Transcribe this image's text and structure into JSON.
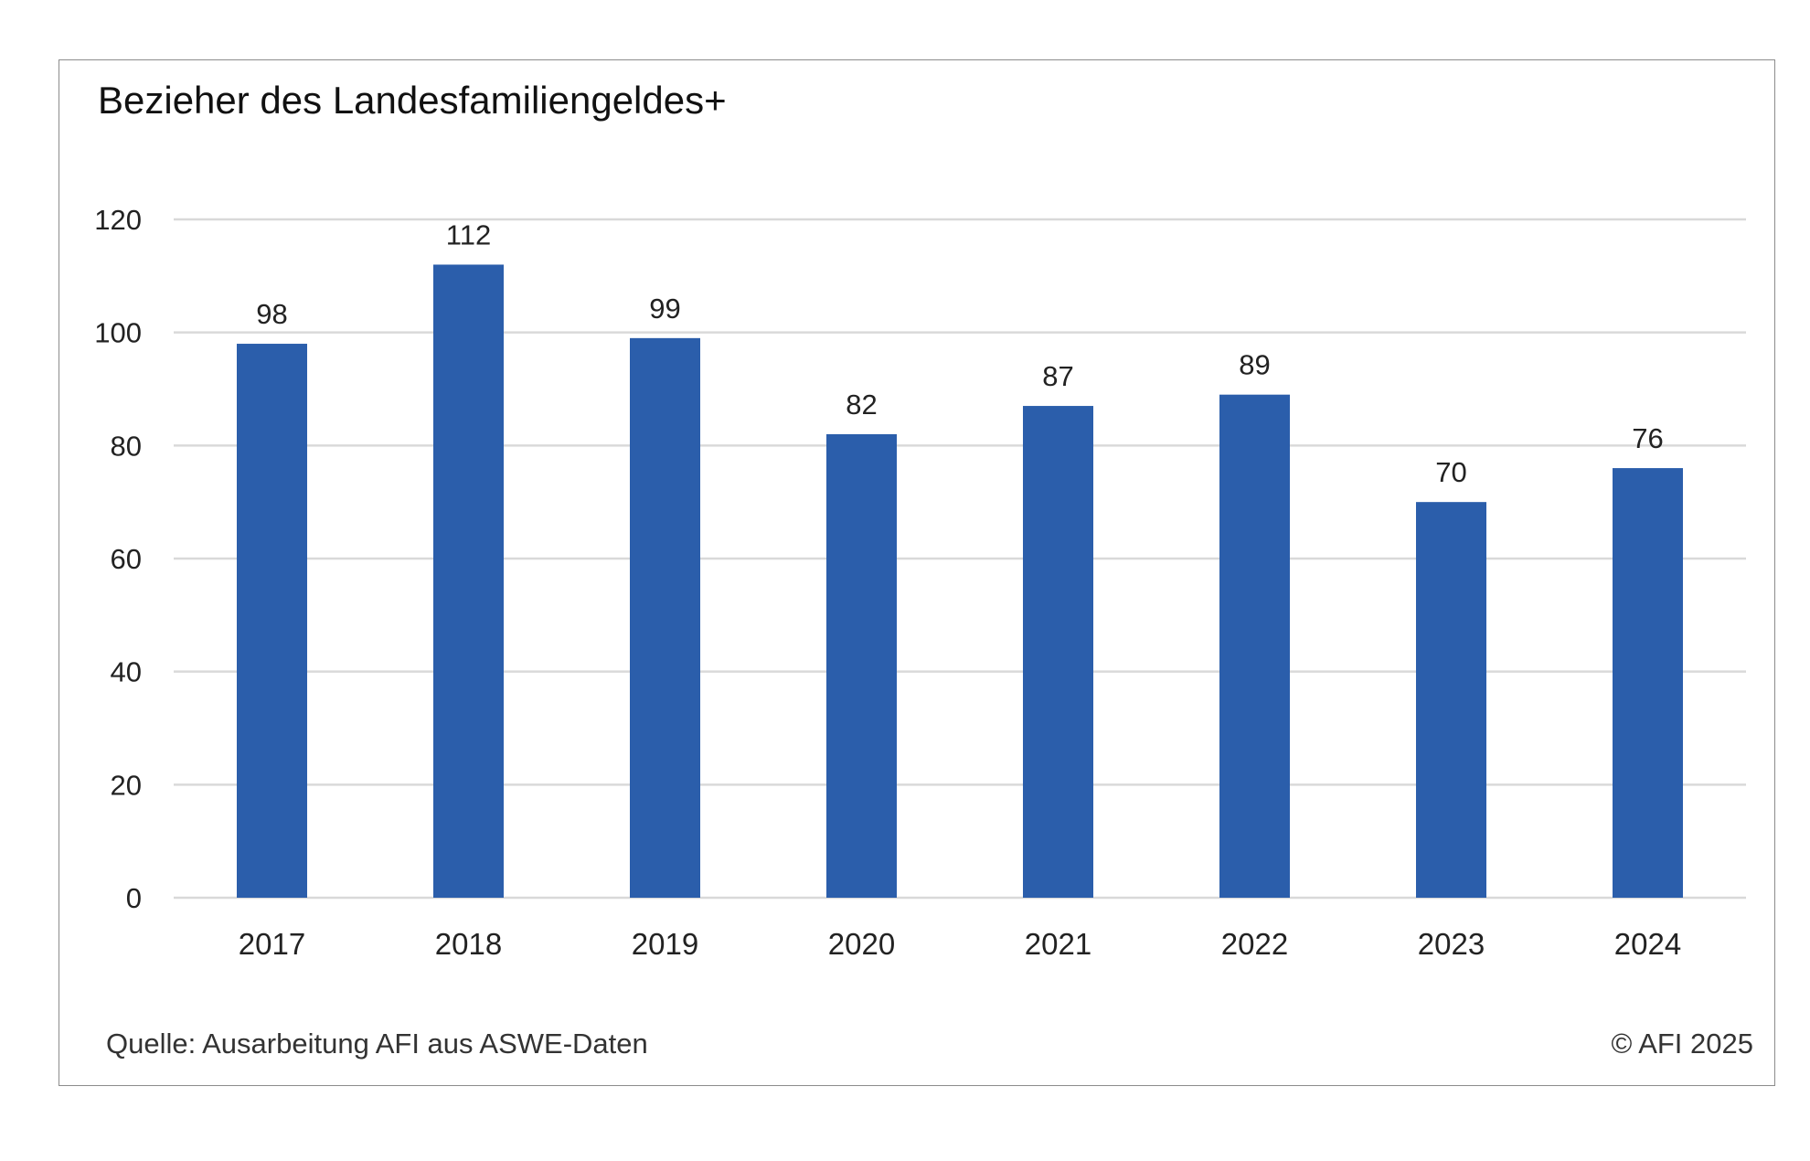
{
  "chart_data": {
    "type": "bar",
    "title": "Bezieher des Landesfamiliengeldes+",
    "categories": [
      "2017",
      "2018",
      "2019",
      "2020",
      "2021",
      "2022",
      "2023",
      "2024"
    ],
    "values": [
      98,
      112,
      99,
      82,
      87,
      89,
      70,
      76
    ],
    "data_labels": [
      "98",
      "112",
      "99",
      "82",
      "87",
      "89",
      "70",
      "76"
    ],
    "xlabel": "",
    "ylabel": "",
    "ylim": [
      0,
      120
    ],
    "yticks": [
      0,
      20,
      40,
      60,
      80,
      100,
      120
    ],
    "grid": true,
    "legend": false,
    "bar_color": "#2b5eab",
    "grid_color": "#d9d9d9"
  },
  "footer": {
    "source": "Quelle: Ausarbeitung AFI aus ASWE-Daten",
    "copyright": "© AFI 2025"
  }
}
